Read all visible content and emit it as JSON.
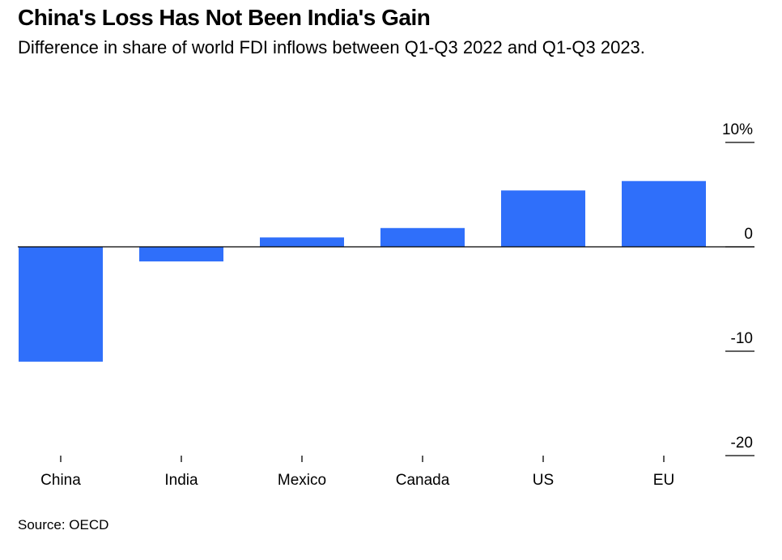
{
  "title": "China's Loss Has Not Been India's Gain",
  "subtitle": "Difference in share of world FDI inflows between Q1-Q3 2022 and Q1-Q3 2023.",
  "source": "Source: OECD",
  "colors": {
    "bar": "#2f6ffa",
    "axis": "#000000"
  },
  "chart_data": {
    "type": "bar",
    "title": "China's Loss Has Not Been India's Gain",
    "subtitle": "Difference in share of world FDI inflows between Q1-Q3 2022 and Q1-Q3 2023.",
    "categories": [
      "China",
      "India",
      "Mexico",
      "Canada",
      "US",
      "EU"
    ],
    "values": [
      -11.0,
      -1.4,
      0.9,
      1.8,
      5.4,
      6.3
    ],
    "ylim": [
      -20,
      10
    ],
    "yticks": [
      10,
      0,
      -10,
      -20
    ],
    "ytick_labels": [
      "10%",
      "0",
      "-10",
      "-20"
    ],
    "y_axis_position": "right",
    "grid": false,
    "legend": "none"
  }
}
